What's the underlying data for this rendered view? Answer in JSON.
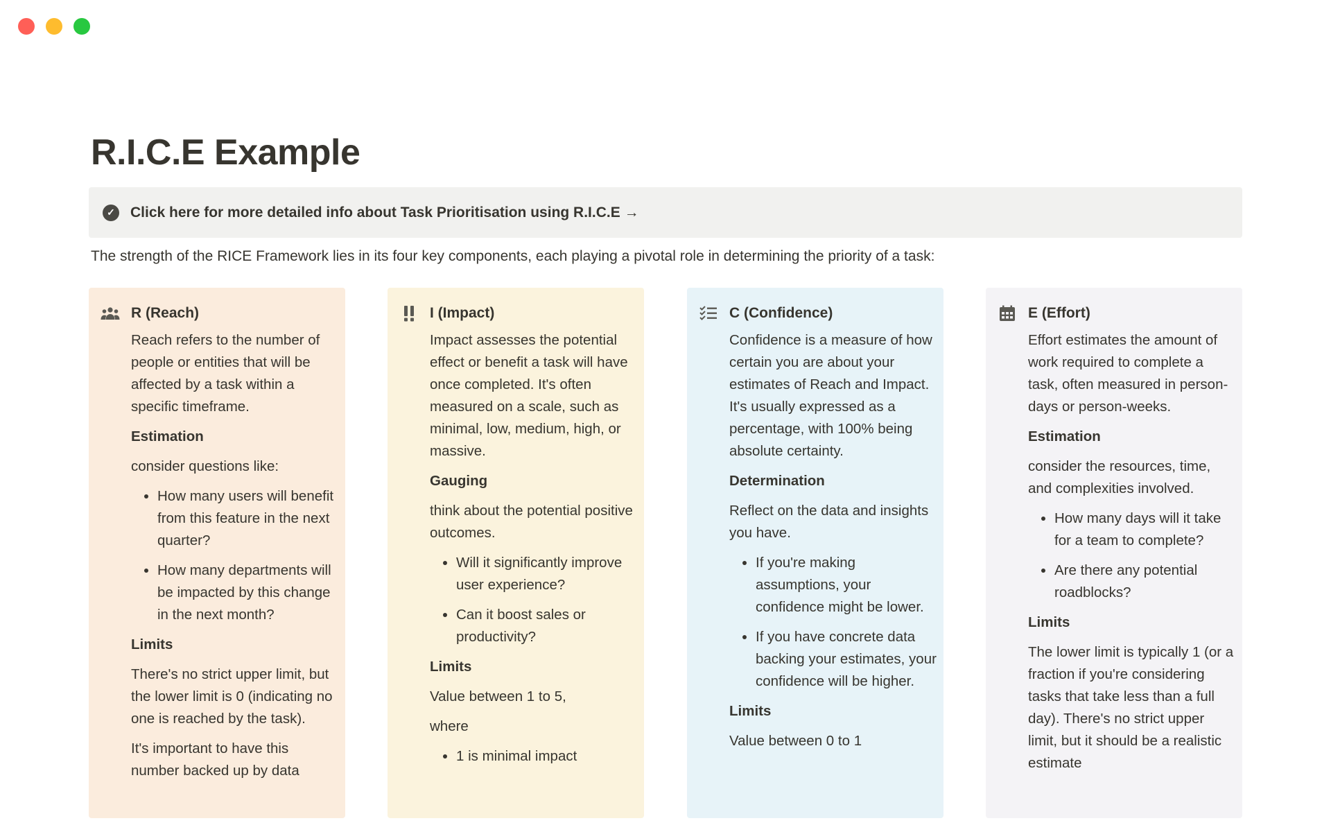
{
  "window": {
    "controls": {
      "close": "#ff5f57",
      "minimize": "#febc2e",
      "zoom": "#28c840"
    }
  },
  "page": {
    "title": "R.I.C.E Example"
  },
  "callout": {
    "icon": "check-circle-icon",
    "text": "Click here for more detailed info about Task Prioritisation using R.I.C.E →"
  },
  "intro": "The strength of the RICE Framework lies in its four key components, each playing a pivotal role in determining the priority of a task:",
  "cards": [
    {
      "id": "reach",
      "title": "R (Reach)",
      "icon": "people-icon",
      "color": "#fbecdd",
      "blocks": [
        {
          "type": "p",
          "text": "Reach refers to the number of people or entities that will be affected by a task within a specific timeframe."
        },
        {
          "type": "h",
          "text": "Estimation"
        },
        {
          "type": "p",
          "text": "consider questions like:"
        },
        {
          "type": "ul",
          "items": [
            "How many users will benefit from this feature in the next quarter?",
            "How many departments will be impacted by this change in the next month?"
          ]
        },
        {
          "type": "h",
          "text": "Limits"
        },
        {
          "type": "p",
          "text": "There's no strict upper limit, but the lower limit is 0 (indicating no one is reached by the task)."
        },
        {
          "type": "p",
          "text": "It's important to have this number backed up by data"
        }
      ]
    },
    {
      "id": "impact",
      "title": "I (Impact)",
      "icon": "double-exclamation-icon",
      "color": "#fbf3dd",
      "blocks": [
        {
          "type": "p",
          "text": "Impact assesses the potential effect or benefit a task will have once completed. It's often measured on a scale, such as minimal, low, medium, high, or massive."
        },
        {
          "type": "h",
          "text": "Gauging"
        },
        {
          "type": "p",
          "text": "think about the potential positive outcomes."
        },
        {
          "type": "ul",
          "items": [
            "Will it significantly improve user experience?",
            "Can it boost sales or productivity?"
          ]
        },
        {
          "type": "h",
          "text": "Limits"
        },
        {
          "type": "p",
          "text": "Value between 1 to 5,"
        },
        {
          "type": "p",
          "text": "where"
        },
        {
          "type": "ul",
          "items": [
            "1 is minimal impact"
          ]
        }
      ]
    },
    {
      "id": "confidence",
      "title": "C (Confidence)",
      "icon": "checklist-icon",
      "color": "#e7f3f8",
      "blocks": [
        {
          "type": "p",
          "text": "Confidence is a measure of how certain you are about your estimates of Reach and Impact. It's usually expressed as a percentage, with 100% being absolute certainty."
        },
        {
          "type": "h",
          "text": "Determination"
        },
        {
          "type": "p",
          "text": "Reflect on the data and insights you have."
        },
        {
          "type": "ul",
          "items": [
            "If you're making assumptions, your confidence might be lower.",
            "If you have concrete data backing your estimates, your confidence will be higher."
          ]
        },
        {
          "type": "h",
          "text": "Limits"
        },
        {
          "type": "p",
          "text": "Value between 0 to 1"
        }
      ]
    },
    {
      "id": "effort",
      "title": "E (Effort)",
      "icon": "calendar-icon",
      "color": "#f4f3f6",
      "blocks": [
        {
          "type": "p",
          "text": "Effort estimates the amount of work required to complete a task, often measured in person-days or person-weeks."
        },
        {
          "type": "h",
          "text": "Estimation"
        },
        {
          "type": "p",
          "text": "consider the resources, time, and complexities involved."
        },
        {
          "type": "ul",
          "items": [
            "How many days will it take for a team to complete?",
            "Are there any potential roadblocks?"
          ]
        },
        {
          "type": "h",
          "text": "Limits"
        },
        {
          "type": "p",
          "text": "The lower limit is typically 1 (or a fraction if you're considering tasks that take less than a full day). There's no strict upper limit, but it should be a realistic estimate"
        }
      ]
    }
  ]
}
